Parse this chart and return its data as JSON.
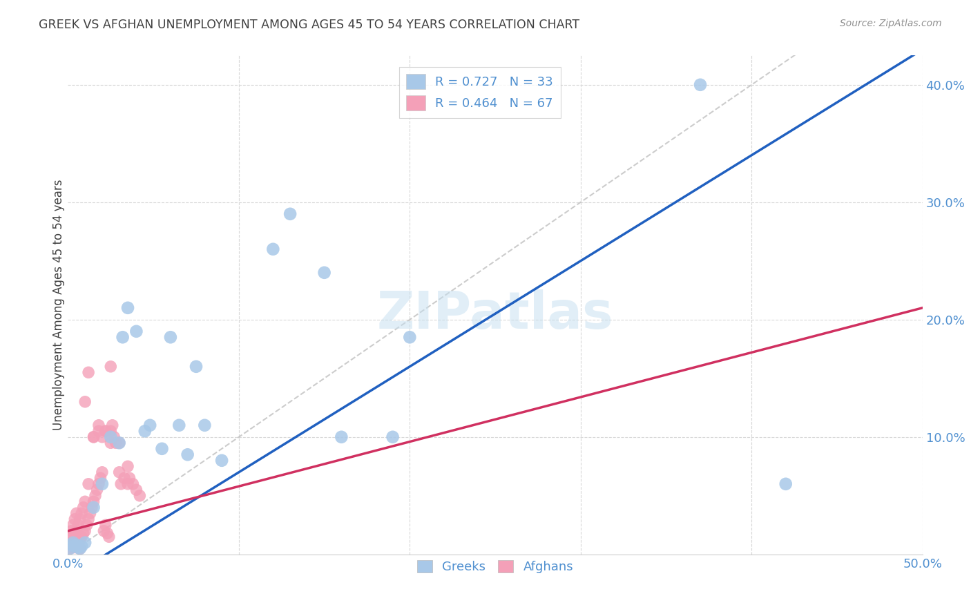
{
  "title": "GREEK VS AFGHAN UNEMPLOYMENT AMONG AGES 45 TO 54 YEARS CORRELATION CHART",
  "source": "Source: ZipAtlas.com",
  "ylabel": "Unemployment Among Ages 45 to 54 years",
  "xlim": [
    0.0,
    0.5
  ],
  "ylim": [
    0.0,
    0.425
  ],
  "xticks": [
    0.0,
    0.1,
    0.2,
    0.3,
    0.4,
    0.5
  ],
  "yticks": [
    0.0,
    0.1,
    0.2,
    0.3,
    0.4
  ],
  "xticklabels": [
    "0.0%",
    "",
    "",
    "",
    "",
    "50.0%"
  ],
  "yticklabels_right": [
    "",
    "10.0%",
    "20.0%",
    "30.0%",
    "40.0%"
  ],
  "greek_color": "#a8c8e8",
  "afghan_color": "#f4a0b8",
  "greek_line_color": "#2060c0",
  "afghan_line_color": "#d03060",
  "trendline_color": "#c0c0c0",
  "greek_R": 0.727,
  "greek_N": 33,
  "afghan_R": 0.464,
  "afghan_N": 67,
  "watermark": "ZIPatlas",
  "greek_x": [
    0.001,
    0.002,
    0.003,
    0.004,
    0.005,
    0.006,
    0.007,
    0.008,
    0.01,
    0.015,
    0.02,
    0.025,
    0.03,
    0.032,
    0.035,
    0.04,
    0.045,
    0.048,
    0.055,
    0.06,
    0.065,
    0.07,
    0.075,
    0.08,
    0.09,
    0.12,
    0.13,
    0.15,
    0.16,
    0.19,
    0.2,
    0.37,
    0.42
  ],
  "greek_y": [
    0.005,
    0.008,
    0.01,
    0.007,
    0.008,
    0.006,
    0.005,
    0.007,
    0.01,
    0.04,
    0.06,
    0.1,
    0.095,
    0.185,
    0.21,
    0.19,
    0.105,
    0.11,
    0.09,
    0.185,
    0.11,
    0.085,
    0.16,
    0.11,
    0.08,
    0.26,
    0.29,
    0.24,
    0.1,
    0.1,
    0.185,
    0.4,
    0.06
  ],
  "afghan_x": [
    0.001,
    0.001,
    0.001,
    0.002,
    0.002,
    0.002,
    0.003,
    0.003,
    0.003,
    0.003,
    0.004,
    0.004,
    0.004,
    0.005,
    0.005,
    0.005,
    0.006,
    0.006,
    0.007,
    0.007,
    0.008,
    0.008,
    0.009,
    0.009,
    0.01,
    0.01,
    0.011,
    0.012,
    0.012,
    0.013,
    0.014,
    0.015,
    0.015,
    0.016,
    0.017,
    0.018,
    0.018,
    0.019,
    0.02,
    0.021,
    0.022,
    0.022,
    0.023,
    0.024,
    0.025,
    0.025,
    0.026,
    0.027,
    0.028,
    0.03,
    0.031,
    0.033,
    0.035,
    0.036,
    0.038,
    0.04,
    0.042,
    0.025,
    0.03,
    0.035,
    0.02,
    0.022,
    0.015,
    0.018,
    0.01,
    0.012,
    0.007
  ],
  "afghan_y": [
    0.005,
    0.008,
    0.015,
    0.006,
    0.01,
    0.02,
    0.008,
    0.012,
    0.018,
    0.025,
    0.006,
    0.015,
    0.03,
    0.008,
    0.02,
    0.035,
    0.01,
    0.025,
    0.012,
    0.03,
    0.015,
    0.035,
    0.018,
    0.04,
    0.02,
    0.045,
    0.025,
    0.03,
    0.06,
    0.035,
    0.04,
    0.045,
    0.1,
    0.05,
    0.055,
    0.06,
    0.105,
    0.065,
    0.07,
    0.02,
    0.025,
    0.105,
    0.018,
    0.015,
    0.095,
    0.16,
    0.11,
    0.1,
    0.095,
    0.07,
    0.06,
    0.065,
    0.075,
    0.065,
    0.06,
    0.055,
    0.05,
    0.105,
    0.095,
    0.06,
    0.1,
    0.105,
    0.1,
    0.11,
    0.13,
    0.155,
    0.005
  ],
  "background_color": "#ffffff",
  "tick_color": "#5090d0",
  "grid_color": "#d8d8d8",
  "title_color": "#404040",
  "source_color": "#909090",
  "ylabel_color": "#404040"
}
